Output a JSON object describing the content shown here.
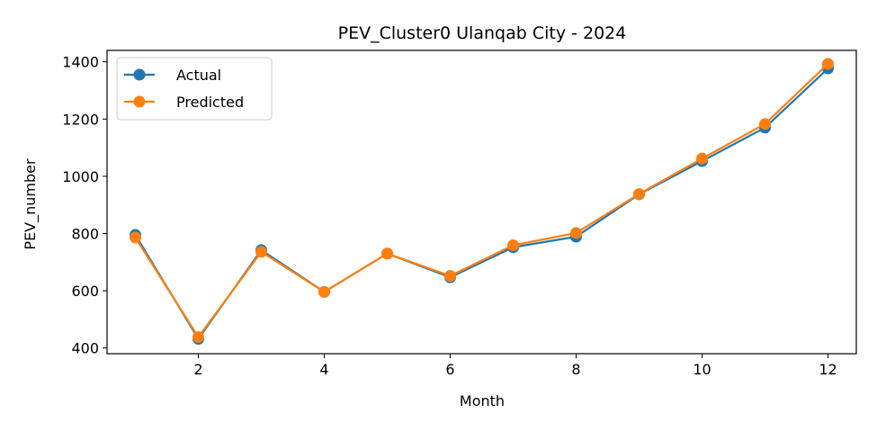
{
  "chart_data": {
    "type": "line",
    "title": "PEV_Cluster0 Ulanqab City - 2024",
    "xlabel": "Month",
    "ylabel": "PEV_number",
    "xlim": [
      0.55,
      12.45
    ],
    "ylim": [
      380,
      1440
    ],
    "xticks": [
      2,
      4,
      6,
      8,
      10,
      12
    ],
    "yticks": [
      400,
      600,
      800,
      1000,
      1200,
      1400
    ],
    "x": [
      1,
      2,
      3,
      4,
      5,
      6,
      7,
      8,
      9,
      10,
      11,
      12
    ],
    "series": [
      {
        "name": "Actual",
        "color": "#1f77b4",
        "values": [
          795,
          432,
          742,
          596,
          730,
          647,
          752,
          789,
          937,
          1053,
          1170,
          1377
        ]
      },
      {
        "name": "Predicted",
        "color": "#ff7f0e",
        "values": [
          786,
          438,
          736,
          596,
          730,
          652,
          759,
          802,
          938,
          1062,
          1183,
          1393
        ]
      }
    ],
    "legend_position": "top-left",
    "grid": false
  }
}
